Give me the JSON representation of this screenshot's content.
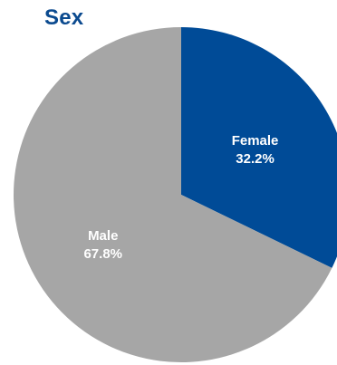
{
  "chart_data": {
    "type": "pie",
    "title": "Sex",
    "slices": [
      {
        "label": "Female",
        "value": 32.2,
        "display": "32.2%",
        "color": "#004b97"
      },
      {
        "label": "Male",
        "value": 67.8,
        "display": "67.8%",
        "color": "#a6a6a6"
      }
    ],
    "start": "12 o'clock",
    "direction": "clockwise"
  }
}
